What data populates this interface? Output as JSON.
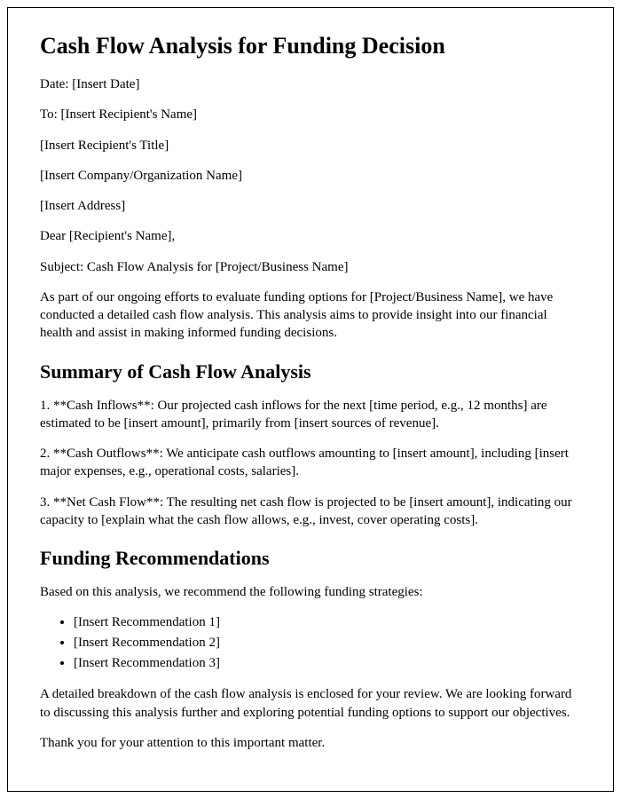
{
  "title": "Cash Flow Analysis for Funding Decision",
  "header": {
    "date": "Date: [Insert Date]",
    "to": "To: [Insert Recipient's Name]",
    "recipient_title": "[Insert Recipient's Title]",
    "company": "[Insert Company/Organization Name]",
    "address": "[Insert Address]",
    "salutation": "Dear [Recipient's Name],",
    "subject": "Subject: Cash Flow Analysis for [Project/Business Name]"
  },
  "intro": "As part of our ongoing efforts to evaluate funding options for [Project/Business Name], we have conducted a detailed cash flow analysis. This analysis aims to provide insight into our financial health and assist in making informed funding decisions.",
  "summary_heading": "Summary of Cash Flow Analysis",
  "summary_items": [
    "1. **Cash Inflows**: Our projected cash inflows for the next [time period, e.g., 12 months] are estimated to be [insert amount], primarily from [insert sources of revenue].",
    "2. **Cash Outflows**: We anticipate cash outflows amounting to [insert amount], including [insert major expenses, e.g., operational costs, salaries].",
    "3. **Net Cash Flow**: The resulting net cash flow is projected to be [insert amount], indicating our capacity to [explain what the cash flow allows, e.g., invest, cover operating costs]."
  ],
  "funding_heading": "Funding Recommendations",
  "funding_intro": "Based on this analysis, we recommend the following funding strategies:",
  "recommendations": [
    "[Insert Recommendation 1]",
    "[Insert Recommendation 2]",
    "[Insert Recommendation 3]"
  ],
  "closing_detail": "A detailed breakdown of the cash flow analysis is enclosed for your review. We are looking forward to discussing this analysis further and exploring potential funding options to support our objectives.",
  "thanks": "Thank you for your attention to this important matter."
}
